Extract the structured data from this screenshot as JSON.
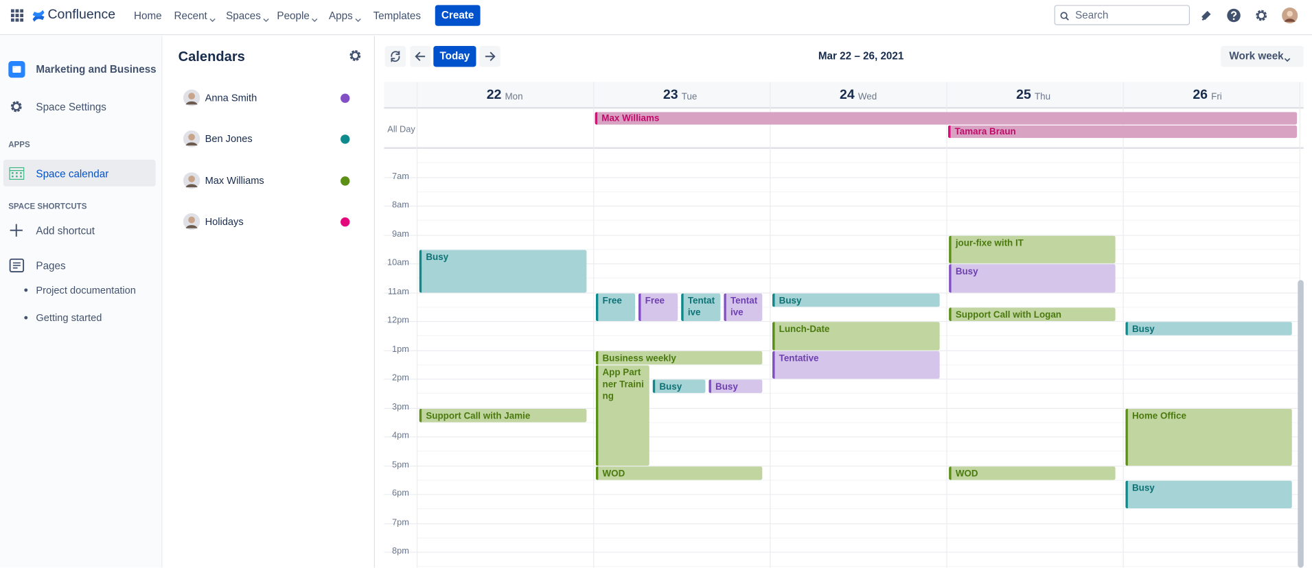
{
  "topbar": {
    "product": "Confluence",
    "nav": [
      "Home",
      "Recent",
      "Spaces",
      "People",
      "Apps",
      "Templates"
    ],
    "create": "Create",
    "search_placeholder": "Search"
  },
  "sidebar": {
    "space": "Marketing and Business",
    "settings": "Space Settings",
    "apps_heading": "APPS",
    "space_calendar": "Space calendar",
    "shortcuts_heading": "SPACE SHORTCUTS",
    "add_shortcut": "Add shortcut",
    "pages": "Pages",
    "page_links": [
      "Project documentation",
      "Getting started"
    ]
  },
  "calendars": {
    "title": "Calendars",
    "items": [
      "Anna Smith",
      "Ben Jones",
      "Max Williams",
      "Holidays"
    ]
  },
  "toolbar": {
    "today": "Today",
    "range": "Mar 22 – 26, 2021",
    "view": "Work week"
  },
  "days": [
    {
      "number": 22,
      "weekday": "Mon"
    },
    {
      "number": 23,
      "weekday": "Tue"
    },
    {
      "number": 24,
      "weekday": "Wed"
    },
    {
      "number": 25,
      "weekday": "Thu"
    },
    {
      "number": 26,
      "weekday": "Fri"
    }
  ],
  "all_day_label": "All Day",
  "all_day_events": [
    "Max Williams",
    "Tamara Braun"
  ],
  "hours": [
    "7am",
    "8am",
    "9am",
    "10am",
    "11am",
    "12pm",
    "1pm",
    "2pm",
    "3pm",
    "4pm",
    "5pm",
    "6pm",
    "7pm",
    "8pm"
  ],
  "events": [
    "Busy",
    "Free",
    "Free",
    "Tentative",
    "Tentative",
    "Busy",
    "jour-fixe with IT",
    "Busy",
    "Support Call with Logan",
    "Busy",
    "Lunch-Date",
    "Tentative",
    "Business weekly",
    "App Partner Training",
    "Busy",
    "Busy",
    "Support Call with Jamie",
    "Home Office",
    "WOD",
    "WOD",
    "Busy"
  ]
}
